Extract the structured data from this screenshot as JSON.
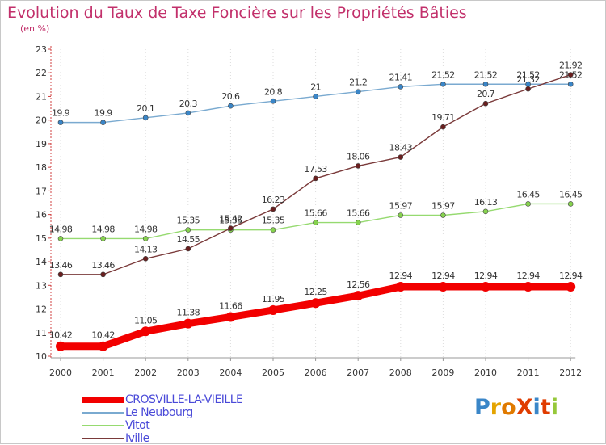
{
  "title": "Evolution du Taux de Taxe Foncière sur les Propriétés Bâties",
  "subtitle": "(en %)",
  "chart_data": {
    "type": "line",
    "title": "Evolution du Taux de Taxe Foncière sur les Propriétés Bâties",
    "ylabel": "(en %)",
    "xlabel": "",
    "ylim": [
      10,
      23
    ],
    "yticks": [
      "10",
      "11",
      "12",
      "13",
      "14",
      "15",
      "16",
      "17",
      "18",
      "19",
      "20",
      "21",
      "22",
      "23"
    ],
    "categories": [
      "2000",
      "2001",
      "2002",
      "2003",
      "2004",
      "2005",
      "2006",
      "2007",
      "2008",
      "2009",
      "2010",
      "2011",
      "2012"
    ],
    "grid": "vertical dotted",
    "legend_position": "bottom-left",
    "series": [
      {
        "name": "Le Neubourg",
        "color": "#7aaad0",
        "marker": "#3a86c8",
        "values": [
          19.9,
          19.9,
          20.1,
          20.3,
          20.6,
          20.8,
          21,
          21.2,
          21.41,
          21.52,
          21.52,
          21.52,
          21.52
        ],
        "labels": [
          "19.9",
          "19.9",
          "20.1",
          "20.3",
          "20.6",
          "20.8",
          "21",
          "21.2",
          "21.41",
          "21.52",
          "21.52",
          "21.52",
          "21.52"
        ]
      },
      {
        "name": "Vitot",
        "color": "#96da70",
        "marker": "#86d24e",
        "values": [
          14.98,
          14.98,
          14.98,
          15.35,
          15.35,
          15.35,
          15.66,
          15.66,
          15.97,
          15.97,
          16.13,
          16.45,
          16.45
        ],
        "labels": [
          "14.98",
          "14.98",
          "14.98",
          "15.35",
          "15.35",
          "15.35",
          "15.66",
          "15.66",
          "15.97",
          "15.97",
          "16.13",
          "16.45",
          "16.45"
        ]
      },
      {
        "name": "Iville",
        "color": "#7a3a3a",
        "marker": "#6a1f1f",
        "values": [
          13.46,
          13.46,
          14.13,
          14.55,
          15.42,
          16.23,
          17.53,
          18.06,
          18.43,
          19.71,
          20.7,
          21.32,
          21.92
        ],
        "labels": [
          "13.46",
          "13.46",
          "14.13",
          "14.55",
          "15.42",
          "16.23",
          "17.53",
          "18.06",
          "18.43",
          "19.71",
          "20.7",
          "21.32",
          "21.92"
        ]
      },
      {
        "name": "CROSVILLE-LA-VIEILLE",
        "color": "#f20000",
        "marker": "#f20000",
        "values": [
          10.42,
          10.42,
          11.05,
          11.38,
          11.66,
          11.95,
          12.25,
          12.56,
          12.94,
          12.94,
          12.94,
          12.94,
          12.94
        ],
        "labels": [
          "10.42",
          "10.42",
          "11.05",
          "11.38",
          "11.66",
          "11.95",
          "12.25",
          "12.56",
          "12.94",
          "12.94",
          "12.94",
          "12.94",
          "12.94"
        ]
      }
    ]
  },
  "legend": [
    {
      "label": "CROSVILLE-LA-VIEILLE",
      "color": "#f20000"
    },
    {
      "label": "Le Neubourg",
      "color": "#7aaad0"
    },
    {
      "label": "Vitot",
      "color": "#96da70"
    },
    {
      "label": "Iville",
      "color": "#7a3a3a"
    }
  ],
  "logo": {
    "text": "ProXiti",
    "letter_colors": [
      "#3a86c8",
      "#e4a400",
      "#e07a00",
      "#e03c00",
      "#3a86c8",
      "#e03c00",
      "#96c83a"
    ]
  }
}
